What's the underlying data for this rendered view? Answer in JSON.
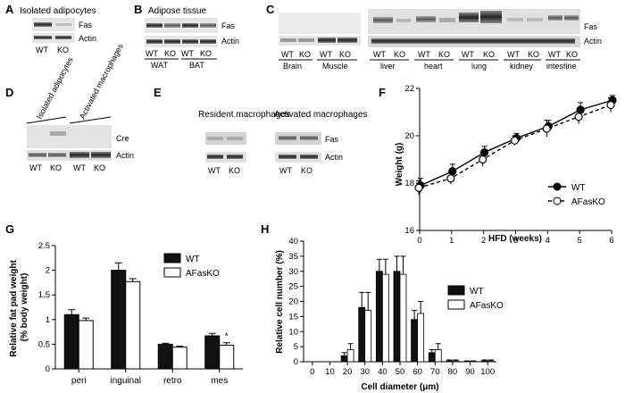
{
  "panels": {
    "A": {
      "letter": "A",
      "title": "Isolated adipocytes",
      "bands": [
        "Fas",
        "Actin"
      ],
      "lanes": [
        "WT",
        "KO"
      ]
    },
    "B": {
      "letter": "B",
      "title": "Adipose tissue",
      "bands": [
        "Fas",
        "Actin"
      ],
      "lanes": [
        "WT",
        "KO",
        "WT",
        "KO"
      ],
      "groups": [
        "WAT",
        "BAT"
      ]
    },
    "C": {
      "letter": "C",
      "bands": [
        "Fas",
        "Actin"
      ],
      "lanes": [
        "WT",
        "KO"
      ],
      "groups": [
        "Brain",
        "Muscle",
        "liver",
        "heart",
        "lung",
        "kidney",
        "intestine"
      ]
    },
    "D": {
      "letter": "D",
      "headers": [
        "Isolated adipocytes",
        "Activated macrophages"
      ],
      "bands": [
        "Cre",
        "Actin"
      ],
      "lanes": [
        "WT",
        "KO",
        "WT",
        "KO"
      ]
    },
    "E": {
      "letter": "E",
      "headers": [
        "Resident macrophages",
        "Activated macrophages"
      ],
      "bands": [
        "Fas",
        "Actin"
      ],
      "lanes": [
        "WT",
        "KO",
        "WT",
        "KO"
      ]
    },
    "F": {
      "letter": "F"
    },
    "G": {
      "letter": "G",
      "star": "*"
    },
    "H": {
      "letter": "H"
    }
  },
  "chart_data": [
    {
      "panel": "F",
      "type": "line",
      "xlabel": "HFD (weeks)",
      "ylabel": "Weight (g)",
      "x": [
        0,
        1,
        2,
        3,
        4,
        5,
        6
      ],
      "xlim": [
        0,
        6
      ],
      "ylim": [
        16,
        22
      ],
      "yticks": [
        16,
        18,
        20,
        22
      ],
      "series": [
        {
          "name": "WT",
          "values": [
            17.9,
            18.5,
            19.3,
            19.9,
            20.4,
            21.1,
            21.5
          ],
          "errors": [
            0.3,
            0.3,
            0.25,
            0.2,
            0.25,
            0.3,
            0.2
          ],
          "marker": "filled"
        },
        {
          "name": "AFasKO",
          "values": [
            17.8,
            18.2,
            19.0,
            19.8,
            20.3,
            20.8,
            21.3
          ],
          "errors": [
            0.3,
            0.25,
            0.3,
            0.2,
            0.35,
            0.3,
            0.3
          ],
          "marker": "open"
        }
      ],
      "legend": "right"
    },
    {
      "panel": "G",
      "type": "bar",
      "ylabel": "Relative fat pad weight (% body weight)",
      "categories": [
        "peri",
        "inguinal",
        "retro",
        "mes"
      ],
      "ylim": [
        0,
        2.5
      ],
      "yticks": [
        0,
        0.5,
        1.0,
        1.5,
        2.0,
        2.5
      ],
      "series": [
        {
          "name": "WT",
          "values": [
            1.1,
            2.0,
            0.5,
            0.67
          ],
          "errors": [
            0.1,
            0.15,
            0.02,
            0.05
          ],
          "color": "#111111"
        },
        {
          "name": "AFasKO",
          "values": [
            0.98,
            1.77,
            0.44,
            0.48
          ],
          "errors": [
            0.05,
            0.06,
            0.02,
            0.05
          ],
          "color": "#ffffff"
        }
      ],
      "legend": "top-right"
    },
    {
      "panel": "H",
      "type": "bar",
      "xlabel": "Cell diameter (μm)",
      "ylabel": "Relative cell number (%)",
      "categories": [
        "0",
        "10",
        "20",
        "30",
        "40",
        "50",
        "60",
        "70",
        "80",
        "90",
        "100"
      ],
      "ylim": [
        0,
        40
      ],
      "yticks": [
        0,
        5,
        10,
        15,
        20,
        25,
        30,
        35,
        40
      ],
      "series": [
        {
          "name": "WT",
          "values": [
            0,
            0,
            2,
            18,
            30,
            30,
            14,
            3,
            0.3,
            0.1,
            0.3
          ],
          "errors": [
            0,
            0,
            1,
            5,
            4,
            5,
            3,
            1,
            0.3,
            0.2,
            0.3
          ],
          "color": "#111111"
        },
        {
          "name": "AFasKO",
          "values": [
            0,
            0,
            4,
            17,
            29,
            29,
            16,
            4,
            0.3,
            0.1,
            0.3
          ],
          "errors": [
            0,
            0,
            2,
            6,
            5,
            6,
            4,
            2,
            0.3,
            0.2,
            0.3
          ],
          "color": "#ffffff"
        }
      ],
      "legend": "right"
    }
  ]
}
